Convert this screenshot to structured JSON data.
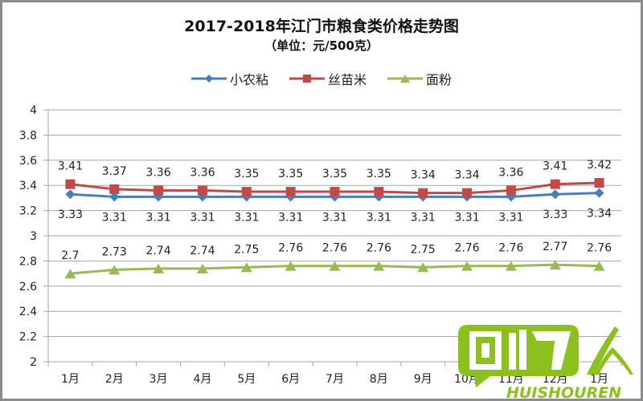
{
  "chart_data": {
    "type": "line",
    "title": "2017-2018年江门市粮食类价格走势图",
    "subtitle": "（单位：元/500克）",
    "xlabel": "",
    "ylabel": "",
    "ylim": [
      2,
      4
    ],
    "yticks": [
      "4",
      "3.8",
      "3.6",
      "3.4",
      "3.2",
      "3",
      "2.8",
      "2.6",
      "2.4",
      "2.2",
      "2"
    ],
    "grid": true,
    "legend_position": "top",
    "categories": [
      "1月",
      "2月",
      "3月",
      "4月",
      "5月",
      "6月",
      "7月",
      "8月",
      "9月",
      "10月",
      "11月",
      "12月",
      "1月"
    ],
    "series": [
      {
        "name": "小农粘",
        "color": "#4a7ebb",
        "marker": "diamond",
        "label_position": "below",
        "values": [
          3.33,
          3.31,
          3.31,
          3.31,
          3.31,
          3.31,
          3.31,
          3.31,
          3.31,
          3.31,
          3.31,
          3.33,
          3.34
        ]
      },
      {
        "name": "丝苗米",
        "color": "#be4b48",
        "marker": "square",
        "label_position": "above",
        "values": [
          3.41,
          3.37,
          3.36,
          3.36,
          3.35,
          3.35,
          3.35,
          3.35,
          3.34,
          3.34,
          3.36,
          3.41,
          3.42
        ]
      },
      {
        "name": "面粉",
        "color": "#98b954",
        "marker": "triangle",
        "label_position": "above",
        "values": [
          2.7,
          2.73,
          2.74,
          2.74,
          2.75,
          2.76,
          2.76,
          2.76,
          2.75,
          2.76,
          2.76,
          2.77,
          2.76
        ]
      }
    ]
  },
  "legend": {
    "items": [
      {
        "label": "小农粘",
        "color": "#4a7ebb"
      },
      {
        "label": "丝苗米",
        "color": "#be4b48"
      },
      {
        "label": "面粉",
        "color": "#98b954"
      }
    ]
  },
  "watermark": {
    "text_cn": "回收人",
    "text_en": "HUISHOUREN",
    "color": "#8cc01e"
  }
}
